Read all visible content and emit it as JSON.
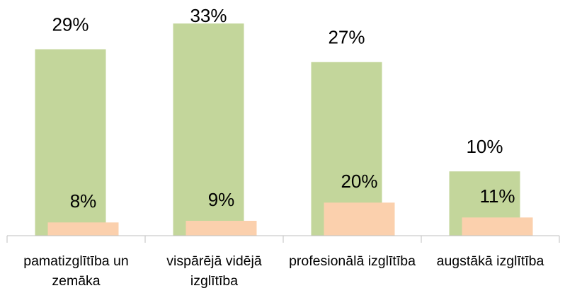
{
  "chart_data": {
    "type": "bar",
    "categories": [
      "pamatizglītība un zemāka",
      "vispārējā vidējā izglītība",
      "profesionālā izglītība",
      "augstākā izglītība"
    ],
    "series": [
      {
        "color": "#c3d69b",
        "values": [
          29,
          33,
          27,
          10
        ],
        "value_labels": [
          "29%",
          "33%",
          "27%",
          "10%"
        ]
      },
      {
        "color": "#fbd0ad",
        "axis": "y2",
        "values": [
          8,
          9,
          20,
          11
        ],
        "value_labels": [
          "8%",
          "9%",
          "20%",
          "11%"
        ]
      }
    ],
    "ylim": [
      0,
      36
    ],
    "y2lim": [
      0,
      140
    ]
  }
}
